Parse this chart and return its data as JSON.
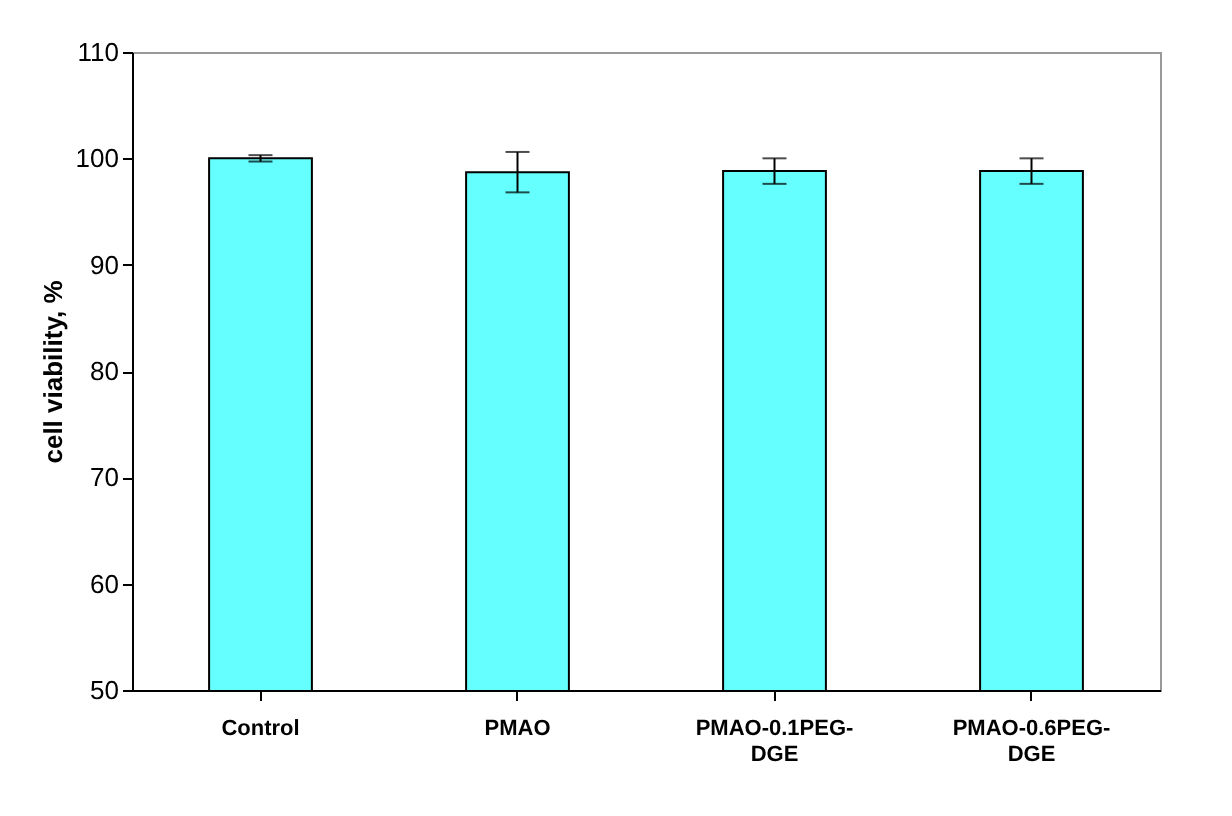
{
  "chart_data": {
    "type": "bar",
    "ylabel": "cell viability, %",
    "categories": [
      "Control",
      "PMAO",
      "PMAO-0.1PEG-DGE",
      "PMAO-0.6PEG-DGE"
    ],
    "values": [
      100,
      98.7,
      98.8,
      98.8
    ],
    "errors": [
      0.3,
      1.9,
      1.2,
      1.2
    ],
    "color": "#66ffff",
    "ylim": [
      50,
      110
    ],
    "yticks": [
      50,
      60,
      70,
      80,
      90,
      100,
      110
    ],
    "grid": false
  }
}
